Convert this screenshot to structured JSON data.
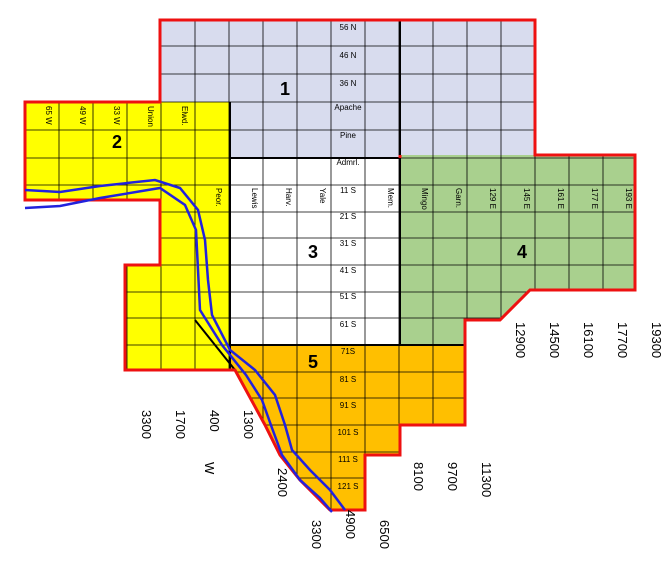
{
  "colors": {
    "district_1": "#d8dcee",
    "district_2": "#ffff00",
    "district_3": "#ffffff",
    "district_4": "#a9d08e",
    "district_5": "#ffbf00",
    "border": "#ee1111",
    "river": "#2222dd",
    "grid": "#000000"
  },
  "districts": [
    {
      "id": "1",
      "label": "1"
    },
    {
      "id": "2",
      "label": "2"
    },
    {
      "id": "3",
      "label": "3"
    },
    {
      "id": "4",
      "label": "4"
    },
    {
      "id": "5",
      "label": "5"
    }
  ],
  "center_streets": [
    "56 N",
    "46 N",
    "36 N",
    "Apache",
    "Pine",
    "Admrl.",
    "11 S",
    "21 S",
    "31 S",
    "41 S",
    "51 S",
    "61 S",
    "71S",
    "81 S",
    "91 S",
    "101 S",
    "111 S",
    "121 S"
  ],
  "west_streets": [
    "65 W",
    "49 W",
    "33 W",
    "Union",
    "Elwd.",
    "Peor."
  ],
  "mid_streets": [
    "Lewis",
    "Harv.",
    "Yale",
    "Mem."
  ],
  "east_streets": [
    "Mingo",
    "Garn.",
    "129 E",
    "145 E",
    "161 E",
    "177 E",
    "193 E"
  ],
  "address_numbers": {
    "west": [
      "3300",
      "1700",
      "400",
      "W",
      "1300"
    ],
    "south": [
      "2400",
      "3300",
      "4900",
      "6500"
    ],
    "southeast": [
      "8100",
      "9700",
      "11300"
    ],
    "east": [
      "12900",
      "14500",
      "16100",
      "17700",
      "19300"
    ]
  }
}
